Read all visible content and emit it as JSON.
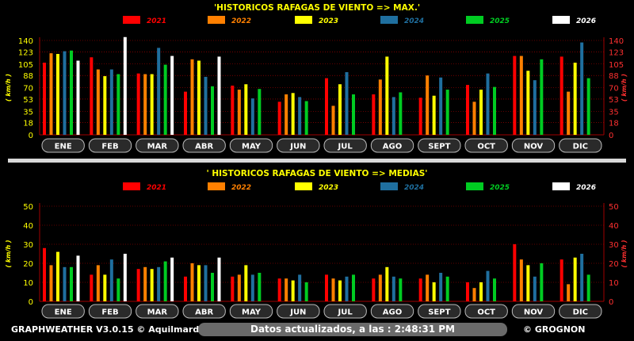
{
  "colors": {
    "2021": "#ff0000",
    "2022": "#ff8000",
    "2023": "#ffff00",
    "2024": "#1f6f9f",
    "2025": "#00cc22",
    "2026": "#ffffff",
    "title": "#ffff00",
    "axis_text": "#ffff00",
    "axis_text_right": "#ff3030",
    "month_pill": "#2a2a2a",
    "divider": "#d8d8d8"
  },
  "footer": {
    "left": "GRAPHWEATHER V3.0.15 © Aquilmard",
    "center": "Datos actualizados, a las : 2:48:31 PM",
    "right": "© GROGNON"
  },
  "chart_data": [
    {
      "type": "bar",
      "title": "'HISTORICOS RAFAGAS DE VIENTO  => MAX.'",
      "ylabel": "( km/h )",
      "ylim": [
        0,
        140
      ],
      "yticks": [
        "0",
        "18",
        "35",
        "53",
        "70",
        "88",
        "105",
        "123",
        "140"
      ],
      "categories": [
        "ENE",
        "FEB",
        "MAR",
        "ABR",
        "MAY",
        "JUN",
        "JUL",
        "AGO",
        "SEPT",
        "OCT",
        "NOV",
        "DIC"
      ],
      "series": [
        {
          "name": "2021",
          "values": [
            107,
            115,
            91,
            64,
            73,
            49,
            84,
            60,
            55,
            74,
            117,
            116
          ]
        },
        {
          "name": "2022",
          "values": [
            121,
            97,
            90,
            112,
            67,
            60,
            43,
            82,
            88,
            49,
            117,
            64
          ]
        },
        {
          "name": "2023",
          "values": [
            120,
            87,
            90,
            110,
            75,
            62,
            75,
            116,
            58,
            67,
            95,
            107
          ]
        },
        {
          "name": "2024",
          "values": [
            124,
            97,
            129,
            86,
            54,
            56,
            93,
            56,
            85,
            91,
            81,
            137
          ]
        },
        {
          "name": "2025",
          "values": [
            125,
            90,
            104,
            72,
            68,
            50,
            60,
            63,
            67,
            71,
            112,
            84
          ]
        },
        {
          "name": "2026",
          "values": [
            110,
            145,
            117,
            116,
            null,
            null,
            null,
            null,
            null,
            null,
            null,
            null
          ]
        }
      ]
    },
    {
      "type": "bar",
      "title": "' HISTORICOS RAFAGAS DE VIENTO => MEDIAS'",
      "ylabel": "( km/h )",
      "ylim": [
        0,
        50
      ],
      "yticks": [
        "0",
        "10",
        "20",
        "30",
        "40",
        "50"
      ],
      "categories": [
        "ENE",
        "FEB",
        "MAR",
        "ABR",
        "MAY",
        "JUN",
        "JUL",
        "AGO",
        "SEPT",
        "OCT",
        "NOV",
        "DIC"
      ],
      "series": [
        {
          "name": "2021",
          "values": [
            28,
            14,
            17,
            13,
            13,
            12,
            14,
            12,
            12,
            10,
            30,
            22
          ]
        },
        {
          "name": "2022",
          "values": [
            19,
            19,
            18,
            20,
            14,
            12,
            12,
            14,
            14,
            7,
            22,
            9
          ]
        },
        {
          "name": "2023",
          "values": [
            26,
            14,
            17,
            19,
            19,
            11,
            11,
            18,
            10,
            10,
            19,
            23
          ]
        },
        {
          "name": "2024",
          "values": [
            18,
            22,
            18,
            19,
            14,
            14,
            13,
            13,
            15,
            16,
            13,
            25
          ]
        },
        {
          "name": "2025",
          "values": [
            18,
            12,
            21,
            15,
            15,
            10,
            14,
            12,
            13,
            12,
            20,
            14
          ]
        },
        {
          "name": "2026",
          "values": [
            24,
            25,
            23,
            23,
            null,
            null,
            null,
            null,
            null,
            null,
            null,
            null
          ]
        }
      ]
    }
  ]
}
